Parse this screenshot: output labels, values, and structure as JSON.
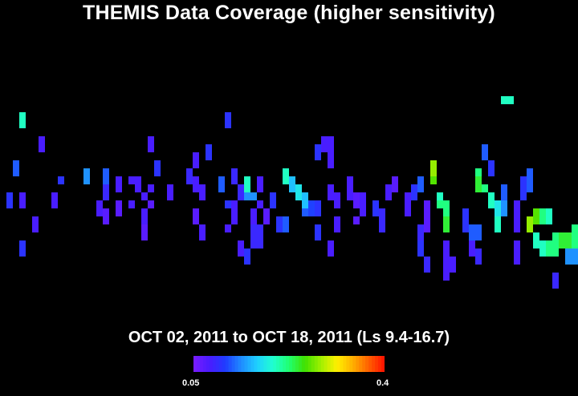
{
  "chart_data": {
    "type": "heatmap",
    "title": "THEMIS Data Coverage (higher sensitivity)",
    "subtitle": "OCT 02, 2011 to OCT 18, 2011 (Ls 9.4-16.7)",
    "colorbar": {
      "min_label": "0.05",
      "max_label": "0.4",
      "range": [
        0.05,
        0.4
      ],
      "colors": [
        "#7a1cff",
        "#4a1cff",
        "#1f3cff",
        "#1f8cff",
        "#1fd0ff",
        "#20ffd0",
        "#20ff70",
        "#40e000",
        "#a0f000",
        "#fff000",
        "#ffb000",
        "#ff6000",
        "#ff1000"
      ]
    },
    "grid": {
      "cols": 90,
      "rows": 30
    },
    "cells": [
      [
        3,
        8,
        0.2
      ],
      [
        3,
        9,
        0.2
      ],
      [
        3,
        18,
        0.08
      ],
      [
        3,
        19,
        0.08
      ],
      [
        3,
        24,
        0.1
      ],
      [
        3,
        25,
        0.1
      ],
      [
        2,
        14,
        0.12
      ],
      [
        2,
        15,
        0.12
      ],
      [
        1,
        18,
        0.1
      ],
      [
        1,
        19,
        0.1
      ],
      [
        6,
        11,
        0.08
      ],
      [
        6,
        12,
        0.08
      ],
      [
        5,
        21,
        0.08
      ],
      [
        5,
        22,
        0.08
      ],
      [
        9,
        16,
        0.1
      ],
      [
        8,
        18,
        0.08
      ],
      [
        8,
        19,
        0.08
      ],
      [
        13,
        15,
        0.14
      ],
      [
        13,
        16,
        0.14
      ],
      [
        16,
        15,
        0.12
      ],
      [
        16,
        16,
        0.12
      ],
      [
        16,
        17,
        0.09
      ],
      [
        16,
        18,
        0.09
      ],
      [
        15,
        19,
        0.08
      ],
      [
        15,
        20,
        0.08
      ],
      [
        16,
        20,
        0.07
      ],
      [
        16,
        21,
        0.07
      ],
      [
        18,
        16,
        0.08
      ],
      [
        18,
        17,
        0.08
      ],
      [
        18,
        19,
        0.07
      ],
      [
        18,
        20,
        0.07
      ],
      [
        20,
        16,
        0.08
      ],
      [
        20,
        19,
        0.08
      ],
      [
        21,
        16,
        0.08
      ],
      [
        21,
        17,
        0.08
      ],
      [
        23,
        11,
        0.08
      ],
      [
        23,
        12,
        0.08
      ],
      [
        24,
        14,
        0.1
      ],
      [
        24,
        15,
        0.1
      ],
      [
        23,
        17,
        0.08
      ],
      [
        22,
        20,
        0.08
      ],
      [
        22,
        21,
        0.08
      ],
      [
        23,
        19,
        0.07
      ],
      [
        22,
        18,
        0.08
      ],
      [
        22,
        20,
        0.08
      ],
      [
        22,
        22,
        0.07
      ],
      [
        22,
        23,
        0.07
      ],
      [
        26,
        17,
        0.08
      ],
      [
        26,
        18,
        0.08
      ],
      [
        29,
        15,
        0.09
      ],
      [
        29,
        16,
        0.09
      ],
      [
        30,
        16,
        0.08
      ],
      [
        30,
        17,
        0.08
      ],
      [
        31,
        17,
        0.08
      ],
      [
        31,
        18,
        0.08
      ],
      [
        30,
        20,
        0.07
      ],
      [
        30,
        21,
        0.07
      ],
      [
        31,
        22,
        0.08
      ],
      [
        31,
        23,
        0.08
      ],
      [
        30,
        13,
        0.08
      ],
      [
        30,
        14,
        0.08
      ],
      [
        32,
        12,
        0.1
      ],
      [
        32,
        13,
        0.1
      ],
      [
        34,
        16,
        0.12
      ],
      [
        34,
        17,
        0.12
      ],
      [
        36,
        15,
        0.09
      ],
      [
        36,
        16,
        0.09
      ],
      [
        37,
        17,
        0.09
      ],
      [
        37,
        18,
        0.09
      ],
      [
        36,
        19,
        0.08
      ],
      [
        36,
        20,
        0.08
      ],
      [
        36,
        21,
        0.08
      ],
      [
        35,
        19,
        0.1
      ],
      [
        35,
        22,
        0.08
      ],
      [
        35,
        8,
        0.1
      ],
      [
        35,
        9,
        0.1
      ],
      [
        38,
        16,
        0.2
      ],
      [
        38,
        17,
        0.2
      ],
      [
        38,
        18,
        0.14
      ],
      [
        39,
        18,
        0.14
      ],
      [
        40,
        16,
        0.08
      ],
      [
        40,
        17,
        0.08
      ],
      [
        40,
        19,
        0.08
      ],
      [
        41,
        20,
        0.07
      ],
      [
        41,
        21,
        0.07
      ],
      [
        39,
        20,
        0.08
      ],
      [
        39,
        21,
        0.08
      ],
      [
        39,
        22,
        0.09
      ],
      [
        40,
        22,
        0.09
      ],
      [
        39,
        23,
        0.09
      ],
      [
        40,
        23,
        0.09
      ],
      [
        39,
        24,
        0.09
      ],
      [
        40,
        24,
        0.09
      ],
      [
        37,
        24,
        0.08
      ],
      [
        37,
        25,
        0.08
      ],
      [
        38,
        25,
        0.1
      ],
      [
        38,
        26,
        0.1
      ],
      [
        42,
        18,
        0.1
      ],
      [
        42,
        19,
        0.1
      ],
      [
        43,
        21,
        0.1
      ],
      [
        43,
        22,
        0.1
      ],
      [
        44,
        21,
        0.12
      ],
      [
        44,
        22,
        0.12
      ],
      [
        44,
        15,
        0.2
      ],
      [
        44,
        16,
        0.2
      ],
      [
        45,
        16,
        0.16
      ],
      [
        45,
        17,
        0.16
      ],
      [
        46,
        17,
        0.18
      ],
      [
        46,
        18,
        0.18
      ],
      [
        47,
        18,
        0.16
      ],
      [
        47,
        19,
        0.16
      ],
      [
        47,
        20,
        0.12
      ],
      [
        48,
        19,
        0.11
      ],
      [
        48,
        20,
        0.11
      ],
      [
        49,
        19,
        0.1
      ],
      [
        49,
        20,
        0.1
      ],
      [
        49,
        22,
        0.1
      ],
      [
        49,
        23,
        0.1
      ],
      [
        49,
        12,
        0.1
      ],
      [
        49,
        13,
        0.1
      ],
      [
        50,
        11,
        0.08
      ],
      [
        50,
        12,
        0.08
      ],
      [
        51,
        11,
        0.08
      ],
      [
        51,
        12,
        0.08
      ],
      [
        51,
        13,
        0.08
      ],
      [
        51,
        14,
        0.08
      ],
      [
        51,
        17,
        0.08
      ],
      [
        51,
        18,
        0.08
      ],
      [
        52,
        18,
        0.08
      ],
      [
        52,
        19,
        0.08
      ],
      [
        52,
        21,
        0.08
      ],
      [
        52,
        22,
        0.08
      ],
      [
        51,
        24,
        0.08
      ],
      [
        51,
        25,
        0.08
      ],
      [
        54,
        16,
        0.08
      ],
      [
        54,
        17,
        0.08
      ],
      [
        54,
        18,
        0.08
      ],
      [
        55,
        18,
        0.07
      ],
      [
        55,
        19,
        0.07
      ],
      [
        56,
        18,
        0.08
      ],
      [
        56,
        19,
        0.08
      ],
      [
        56,
        20,
        0.08
      ],
      [
        55,
        21,
        0.07
      ],
      [
        58,
        19,
        0.1
      ],
      [
        58,
        20,
        0.1
      ],
      [
        59,
        20,
        0.09
      ],
      [
        59,
        21,
        0.09
      ],
      [
        59,
        22,
        0.09
      ],
      [
        60,
        17,
        0.08
      ],
      [
        60,
        18,
        0.08
      ],
      [
        61,
        16,
        0.07
      ],
      [
        61,
        17,
        0.07
      ],
      [
        63,
        18,
        0.08
      ],
      [
        63,
        19,
        0.08
      ],
      [
        63,
        20,
        0.08
      ],
      [
        64,
        17,
        0.1
      ],
      [
        64,
        18,
        0.1
      ],
      [
        65,
        16,
        0.12
      ],
      [
        65,
        17,
        0.12
      ],
      [
        67,
        14,
        0.28
      ],
      [
        67,
        15,
        0.28
      ],
      [
        67,
        16,
        0.26
      ],
      [
        68,
        18,
        0.2
      ],
      [
        68,
        19,
        0.22
      ],
      [
        69,
        19,
        0.22
      ],
      [
        69,
        20,
        0.22
      ],
      [
        69,
        21,
        0.24
      ],
      [
        69,
        22,
        0.24
      ],
      [
        66,
        19,
        0.07
      ],
      [
        66,
        20,
        0.07
      ],
      [
        66,
        21,
        0.07
      ],
      [
        66,
        22,
        0.07
      ],
      [
        65,
        22,
        0.09
      ],
      [
        65,
        23,
        0.09
      ],
      [
        65,
        24,
        0.1
      ],
      [
        65,
        25,
        0.1
      ],
      [
        66,
        26,
        0.09
      ],
      [
        66,
        27,
        0.09
      ],
      [
        69,
        24,
        0.08
      ],
      [
        69,
        25,
        0.08
      ],
      [
        69,
        26,
        0.08
      ],
      [
        69,
        27,
        0.08
      ],
      [
        69,
        28,
        0.08
      ],
      [
        70,
        26,
        0.08
      ],
      [
        70,
        27,
        0.08
      ],
      [
        72,
        20,
        0.1
      ],
      [
        72,
        21,
        0.1
      ],
      [
        72,
        22,
        0.1
      ],
      [
        73,
        22,
        0.12
      ],
      [
        73,
        23,
        0.12
      ],
      [
        74,
        22,
        0.12
      ],
      [
        74,
        23,
        0.12
      ],
      [
        73,
        24,
        0.08
      ],
      [
        73,
        25,
        0.08
      ],
      [
        74,
        25,
        0.09
      ],
      [
        74,
        26,
        0.09
      ],
      [
        74,
        15,
        0.22
      ],
      [
        74,
        16,
        0.24
      ],
      [
        74,
        17,
        0.24
      ],
      [
        75,
        17,
        0.22
      ],
      [
        76,
        18,
        0.2
      ],
      [
        76,
        19,
        0.2
      ],
      [
        77,
        19,
        0.18
      ],
      [
        77,
        20,
        0.18
      ],
      [
        77,
        21,
        0.2
      ],
      [
        77,
        22,
        0.2
      ],
      [
        75,
        12,
        0.12
      ],
      [
        75,
        13,
        0.12
      ],
      [
        76,
        14,
        0.1
      ],
      [
        76,
        15,
        0.1
      ],
      [
        78,
        6,
        0.2
      ],
      [
        79,
        6,
        0.2
      ],
      [
        78,
        17,
        0.12
      ],
      [
        78,
        18,
        0.12
      ],
      [
        78,
        19,
        0.14
      ],
      [
        78,
        20,
        0.14
      ],
      [
        80,
        19,
        0.08
      ],
      [
        80,
        20,
        0.08
      ],
      [
        80,
        21,
        0.08
      ],
      [
        80,
        22,
        0.08
      ],
      [
        80,
        24,
        0.08
      ],
      [
        80,
        25,
        0.08
      ],
      [
        80,
        26,
        0.08
      ],
      [
        81,
        16,
        0.1
      ],
      [
        81,
        17,
        0.1
      ],
      [
        81,
        18,
        0.1
      ],
      [
        82,
        15,
        0.12
      ],
      [
        82,
        16,
        0.12
      ],
      [
        82,
        17,
        0.12
      ],
      [
        82,
        21,
        0.28
      ],
      [
        82,
        22,
        0.28
      ],
      [
        83,
        20,
        0.26
      ],
      [
        83,
        21,
        0.26
      ],
      [
        84,
        20,
        0.22
      ],
      [
        84,
        21,
        0.22
      ],
      [
        85,
        20,
        0.2
      ],
      [
        85,
        21,
        0.2
      ],
      [
        83,
        23,
        0.2
      ],
      [
        83,
        24,
        0.2
      ],
      [
        84,
        24,
        0.2
      ],
      [
        84,
        25,
        0.2
      ],
      [
        85,
        24,
        0.22
      ],
      [
        85,
        25,
        0.22
      ],
      [
        86,
        23,
        0.22
      ],
      [
        86,
        24,
        0.22
      ],
      [
        86,
        25,
        0.22
      ],
      [
        87,
        23,
        0.24
      ],
      [
        87,
        24,
        0.24
      ],
      [
        88,
        23,
        0.24
      ],
      [
        88,
        24,
        0.24
      ],
      [
        89,
        22,
        0.22
      ],
      [
        89,
        23,
        0.22
      ],
      [
        89,
        24,
        0.22
      ],
      [
        88,
        25,
        0.14
      ],
      [
        88,
        26,
        0.14
      ],
      [
        89,
        25,
        0.14
      ],
      [
        89,
        26,
        0.14
      ],
      [
        86,
        28,
        0.09
      ],
      [
        86,
        29,
        0.09
      ]
    ]
  }
}
